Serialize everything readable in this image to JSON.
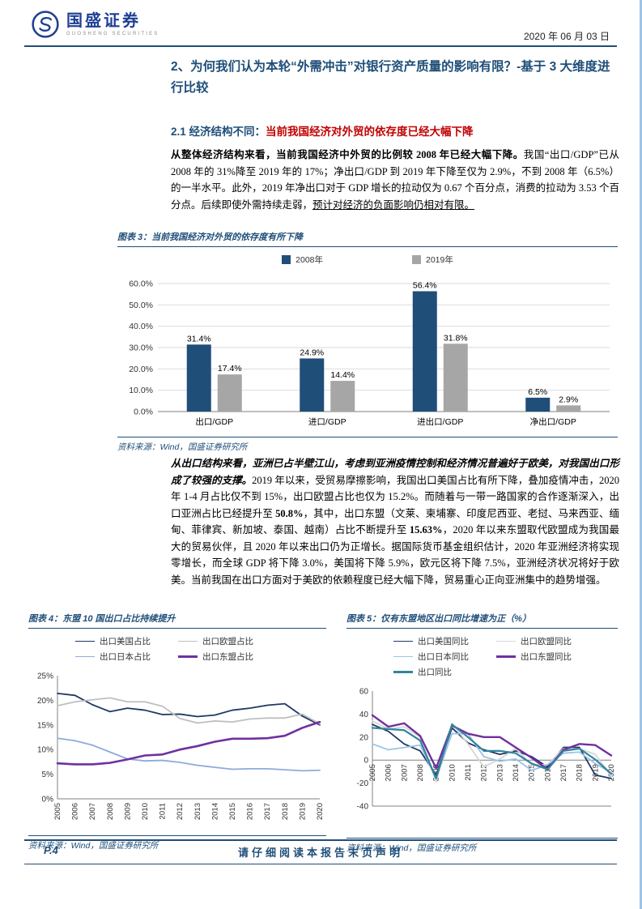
{
  "header": {
    "brand": "国盛证券",
    "brand_en": "GUOSHENG SECURITIES",
    "date": "2020 年 06 月 03 日"
  },
  "title": "2、为何我们认为本轮“外需冲击”对银行资产质量的影响有限？-基于 3 大维度进行比较",
  "section": {
    "num": "2.1 经济结构不同：",
    "rest": "当前我国经济对外贸的依存度已经大幅下降"
  },
  "paragraphs": {
    "p1": [
      {
        "text": "从整体经济结构来看，当前我国经济中外贸的比例较 2008 年已经大幅下降。",
        "style": "bold"
      },
      {
        "text": "我国“出口/GDP”已从 2008 年的 31%降至 2019 年的 17%；净出口/GDP 到 2019 年下降至仅为 2.9%，不到 2008 年（6.5%）的一半水平。此外，2019 年净出口对于 GDP 增长的拉动仅为 0.67 个百分点，消费的拉动为 3.53 个百分点。后续即使外需持续走弱，",
        "style": "normal"
      },
      {
        "text": "预计对经济的负面影响仍相对有限。",
        "style": "underline"
      }
    ],
    "p2": [
      {
        "text": "从出口结构来看，亚洲已占半壁江山，考虑到亚洲疫情控制和经济情况普遍好于欧美，对我国出口形成了较强的支撑。",
        "style": "bold-italic"
      },
      {
        "text": "2019 年以来，受贸易摩擦影响，我国出口美国占比有所下降，叠加疫情冲击，2020 年 1-4 月占比仅不到 15%，出口欧盟占比也仅为 15.2%。而随着与一带一路国家的合作逐渐深入，出口亚洲占比已经提升至 ",
        "style": "normal"
      },
      {
        "text": "50.8%",
        "style": "bold"
      },
      {
        "text": "，其中，出口东盟（文莱、柬埔寨、印度尼西亚、老挝、马来西亚、缅甸、菲律宾、新加坡、泰国、越南）占比不断提升至 ",
        "style": "normal"
      },
      {
        "text": "15.63%",
        "style": "bold"
      },
      {
        "text": "，2020 年以来东盟取代欧盟成为我国最大的贸易伙伴，且 2020 年以来出口仍为正增长。据国际货币基金组织估计，2020 年亚洲经济将实现零增长，而全球 GDP 将下降 3.0%，美国将下降 5.9%，欧元区将下降 7.5%，亚洲经济状况将好于欧美。当前我国在出口方面对于美欧的依赖程度已经大幅下降，贸易重心正向亚洲集中的趋势增强。",
        "style": "normal"
      }
    ]
  },
  "figures": {
    "fig3": {
      "caption": "图表 3：当前我国经济对外贸的依存度有所下降",
      "source": "资料来源：Wind，国盛证券研究所"
    },
    "fig4": {
      "caption": "图表 4：东盟 10 国出口占比持续提升",
      "source": "资料来源：Wind，国盛证券研究所"
    },
    "fig5": {
      "caption": "图表 5：仅有东盟地区出口同比增速为正（%）",
      "source": "资料来源：Wind，国盛证券研究所"
    }
  },
  "footer": {
    "page": "P.4",
    "disclaimer": "请仔细阅读本报告末页声明"
  },
  "chart_data": [
    {
      "id": "fig3",
      "type": "bar",
      "title": "当前我国经济对外贸的依存度有所下降",
      "categories": [
        "出口/GDP",
        "进口/GDP",
        "进出口/GDP",
        "净出口/GDP"
      ],
      "series": [
        {
          "name": "2008年",
          "color": "#1F4E79",
          "values": [
            31.4,
            24.9,
            56.4,
            6.5
          ]
        },
        {
          "name": "2019年",
          "color": "#A6A6A6",
          "values": [
            17.4,
            14.4,
            31.8,
            2.9
          ]
        }
      ],
      "ylim": [
        0,
        60
      ],
      "ytick": 10,
      "yfmt": "pct1",
      "legend_position": "top",
      "grid": true
    },
    {
      "id": "fig4",
      "type": "line",
      "title": "东盟 10 国出口占比持续提升",
      "x": [
        "2005",
        "2006",
        "2007",
        "2008",
        "2009",
        "2010",
        "2011",
        "2012",
        "2013",
        "2014",
        "2015",
        "2016",
        "2017",
        "2018",
        "2019",
        "2020"
      ],
      "series": [
        {
          "name": "出口美国占比",
          "color": "#1F3864",
          "width": 1.8,
          "values": [
            21.4,
            21.0,
            19.1,
            17.7,
            18.4,
            18.0,
            17.1,
            17.2,
            16.7,
            17.0,
            18.0,
            18.4,
            19.0,
            19.3,
            16.8,
            15.0
          ]
        },
        {
          "name": "出口欧盟占比",
          "color": "#BFBFBF",
          "width": 1.8,
          "values": [
            18.9,
            19.7,
            20.1,
            20.5,
            19.7,
            19.7,
            18.8,
            16.3,
            15.4,
            15.8,
            15.6,
            16.2,
            16.4,
            16.4,
            17.2,
            15.2
          ]
        },
        {
          "name": "出口日本占比",
          "color": "#8FAADC",
          "width": 1.8,
          "values": [
            12.3,
            11.8,
            10.9,
            9.5,
            8.1,
            7.7,
            7.8,
            7.4,
            6.8,
            6.4,
            6.0,
            6.1,
            6.1,
            5.9,
            5.7,
            5.8
          ]
        },
        {
          "name": "出口东盟占比",
          "color": "#7030A0",
          "width": 2.6,
          "values": [
            7.2,
            7.0,
            7.0,
            7.3,
            8.0,
            8.8,
            9.0,
            10.0,
            10.7,
            11.6,
            12.2,
            12.2,
            12.3,
            12.8,
            14.4,
            15.6
          ]
        }
      ],
      "ylim": [
        0,
        25
      ],
      "ytick": 5,
      "yfmt": "pct0",
      "legend_position": "top",
      "grid": false
    },
    {
      "id": "fig5",
      "type": "line",
      "title": "仅有东盟地区出口同比增速为正（%）",
      "x": [
        "2005",
        "2006",
        "2007",
        "2008",
        "2009",
        "2010",
        "2011",
        "2012",
        "2013",
        "2014",
        "2015",
        "2016",
        "2017",
        "2018",
        "2019",
        "2020"
      ],
      "series": [
        {
          "name": "出口美国同比",
          "color": "#1F3864",
          "width": 1.8,
          "values": [
            31,
            25,
            14,
            8,
            -13,
            28,
            15,
            9,
            5,
            8,
            3,
            -6,
            11,
            11,
            -13,
            -16
          ]
        },
        {
          "name": "出口欧盟同比",
          "color": "#D6D6D6",
          "width": 1.8,
          "values": [
            34,
            27,
            29,
            20,
            -19,
            32,
            14,
            -6,
            1,
            10,
            -4,
            -4,
            10,
            10,
            5,
            -14
          ]
        },
        {
          "name": "出口日本同比",
          "color": "#9DC3E6",
          "width": 1.8,
          "values": [
            14,
            9,
            11,
            13,
            -16,
            23,
            23,
            3,
            -1,
            1,
            -9,
            -4,
            6,
            7,
            -3,
            -11
          ]
        },
        {
          "name": "出口东盟同比",
          "color": "#7030A0",
          "width": 2.4,
          "values": [
            39,
            29,
            32,
            21,
            -7,
            30,
            23,
            20,
            20,
            11,
            2,
            -8,
            9,
            14,
            13,
            4
          ]
        },
        {
          "name": "出口同比",
          "color": "#31859C",
          "width": 2.2,
          "values": [
            28,
            27,
            26,
            17,
            -16,
            31,
            20,
            8,
            8,
            6,
            -3,
            -8,
            8,
            10,
            0.5,
            -12
          ]
        }
      ],
      "ylim": [
        -40,
        60
      ],
      "ytick": 20,
      "yfmt": "num",
      "legend_position": "top",
      "grid": false
    }
  ]
}
